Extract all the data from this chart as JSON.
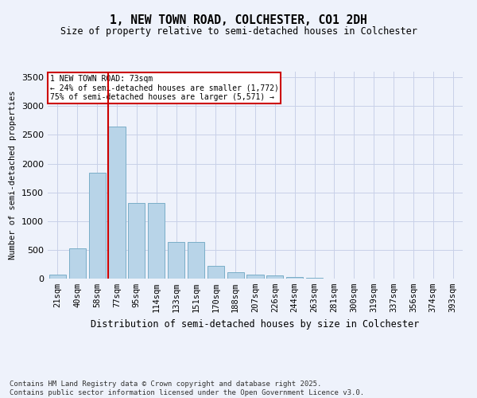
{
  "title": "1, NEW TOWN ROAD, COLCHESTER, CO1 2DH",
  "subtitle": "Size of property relative to semi-detached houses in Colchester",
  "xlabel": "Distribution of semi-detached houses by size in Colchester",
  "ylabel": "Number of semi-detached properties",
  "property_label": "1 NEW TOWN ROAD: 73sqm",
  "pct_smaller": 24,
  "pct_larger": 75,
  "count_smaller": 1772,
  "count_larger": 5571,
  "categories": [
    "21sqm",
    "40sqm",
    "58sqm",
    "77sqm",
    "95sqm",
    "114sqm",
    "133sqm",
    "151sqm",
    "170sqm",
    "188sqm",
    "207sqm",
    "226sqm",
    "244sqm",
    "263sqm",
    "281sqm",
    "300sqm",
    "319sqm",
    "337sqm",
    "356sqm",
    "374sqm",
    "393sqm"
  ],
  "values": [
    75,
    530,
    1840,
    2640,
    1310,
    1310,
    640,
    640,
    220,
    110,
    75,
    55,
    30,
    10,
    5,
    3,
    2,
    1,
    1,
    0,
    0
  ],
  "bar_color": "#b8d4e8",
  "bar_edge_color": "#7aaec8",
  "vline_index": 3,
  "vline_color": "#cc0000",
  "annotation_box_color": "#cc0000",
  "background_color": "#eef2fb",
  "grid_color": "#c8d0e8",
  "ylim": [
    0,
    3600
  ],
  "yticks": [
    0,
    500,
    1000,
    1500,
    2000,
    2500,
    3000,
    3500
  ],
  "footer": "Contains HM Land Registry data © Crown copyright and database right 2025.\nContains public sector information licensed under the Open Government Licence v3.0."
}
